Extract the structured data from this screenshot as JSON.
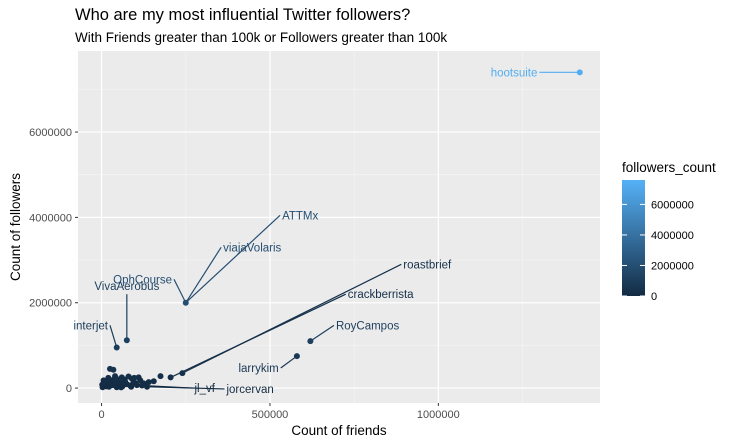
{
  "chart_data": {
    "type": "scatter",
    "title": "Who are my most influential Twitter followers?",
    "subtitle": "With Friends greater than 100k or Followers greater than 100k",
    "xlabel": "Count of friends",
    "ylabel": "Count of followers",
    "xlim": [
      -70000,
      1480000
    ],
    "ylim": [
      -350000,
      7900000
    ],
    "x_ticks": [
      0,
      500000,
      1000000
    ],
    "x_tick_labels": [
      "0",
      "500000",
      "1000000"
    ],
    "y_ticks": [
      0,
      2000000,
      4000000,
      6000000
    ],
    "y_tick_labels": [
      "0",
      "2000000",
      "4000000",
      "6000000"
    ],
    "grid": true,
    "legend": {
      "title": "followers_count",
      "position": "right",
      "gradient": [
        "#132b43",
        "#56b1f7"
      ],
      "range": [
        0,
        7600000
      ],
      "breaks": [
        0,
        2000000,
        4000000,
        6000000
      ],
      "break_labels": [
        "0",
        "2000000",
        "4000000",
        "6000000"
      ]
    },
    "labeled_points": [
      {
        "name": "hootsuite",
        "x": 1420000,
        "y": 7400000,
        "lx": 1300000,
        "ly": 7400000
      },
      {
        "name": "ATTMx",
        "x": 250000,
        "y": 2000000,
        "lx": 530000,
        "ly": 4050000
      },
      {
        "name": "viajaVolaris",
        "x": 250000,
        "y": 2000000,
        "lx": 355000,
        "ly": 3300000
      },
      {
        "name": "OphCourse",
        "x": 250000,
        "y": 2000000,
        "lx": 215000,
        "ly": 2550000
      },
      {
        "name": "roastbrief",
        "x": 240000,
        "y": 350000,
        "lx": 890000,
        "ly": 2900000
      },
      {
        "name": "crackberrista",
        "x": 205000,
        "y": 250000,
        "lx": 725000,
        "ly": 2200000
      },
      {
        "name": "VivaAerobus",
        "x": 75000,
        "y": 1120000,
        "lx": 75000,
        "ly": 2200000
      },
      {
        "name": "interjet",
        "x": 45000,
        "y": 950000,
        "lx": 25000,
        "ly": 1470000
      },
      {
        "name": "RoyCampos",
        "x": 620000,
        "y": 1100000,
        "lx": 690000,
        "ly": 1470000
      },
      {
        "name": "larrykim",
        "x": 580000,
        "y": 750000,
        "lx": 532000,
        "ly": 470000
      },
      {
        "name": "jl_vf",
        "x": 120000,
        "y": 60000,
        "lx": 270000,
        "ly": 0
      },
      {
        "name": "jorcervan",
        "x": 135000,
        "y": 30000,
        "lx": 365000,
        "ly": -20000
      }
    ],
    "points": [
      [
        1420000,
        7400000
      ],
      [
        250000,
        2000000
      ],
      [
        240000,
        350000
      ],
      [
        205000,
        250000
      ],
      [
        620000,
        1100000
      ],
      [
        580000,
        750000
      ],
      [
        75000,
        1120000
      ],
      [
        45000,
        950000
      ],
      [
        25000,
        450000
      ],
      [
        35000,
        430000
      ],
      [
        120000,
        60000
      ],
      [
        135000,
        30000
      ],
      [
        175000,
        280000
      ],
      [
        155000,
        160000
      ],
      [
        110000,
        250000
      ],
      [
        95000,
        130000
      ],
      [
        60000,
        250000
      ],
      [
        70000,
        150000
      ],
      [
        80000,
        270000
      ],
      [
        50000,
        200000
      ],
      [
        40000,
        280000
      ],
      [
        30000,
        180000
      ],
      [
        20000,
        240000
      ],
      [
        15000,
        150000
      ],
      [
        10000,
        100000
      ],
      [
        5000,
        50000
      ],
      [
        3000,
        20000
      ],
      [
        8000,
        120000
      ],
      [
        12000,
        60000
      ],
      [
        18000,
        90000
      ],
      [
        22000,
        30000
      ],
      [
        28000,
        110000
      ],
      [
        33000,
        70000
      ],
      [
        42000,
        140000
      ],
      [
        48000,
        60000
      ],
      [
        55000,
        100000
      ],
      [
        62000,
        40000
      ],
      [
        68000,
        200000
      ],
      [
        75000,
        90000
      ],
      [
        85000,
        60000
      ],
      [
        90000,
        220000
      ],
      [
        100000,
        120000
      ],
      [
        105000,
        70000
      ],
      [
        115000,
        180000
      ],
      [
        125000,
        110000
      ],
      [
        140000,
        140000
      ],
      [
        65000,
        130000
      ],
      [
        38000,
        210000
      ],
      [
        26000,
        60000
      ],
      [
        14000,
        40000
      ],
      [
        6000,
        180000
      ],
      [
        2000,
        80000
      ],
      [
        45000,
        20000
      ],
      [
        58000,
        15000
      ],
      [
        88000,
        30000
      ],
      [
        97000,
        240000
      ]
    ]
  }
}
